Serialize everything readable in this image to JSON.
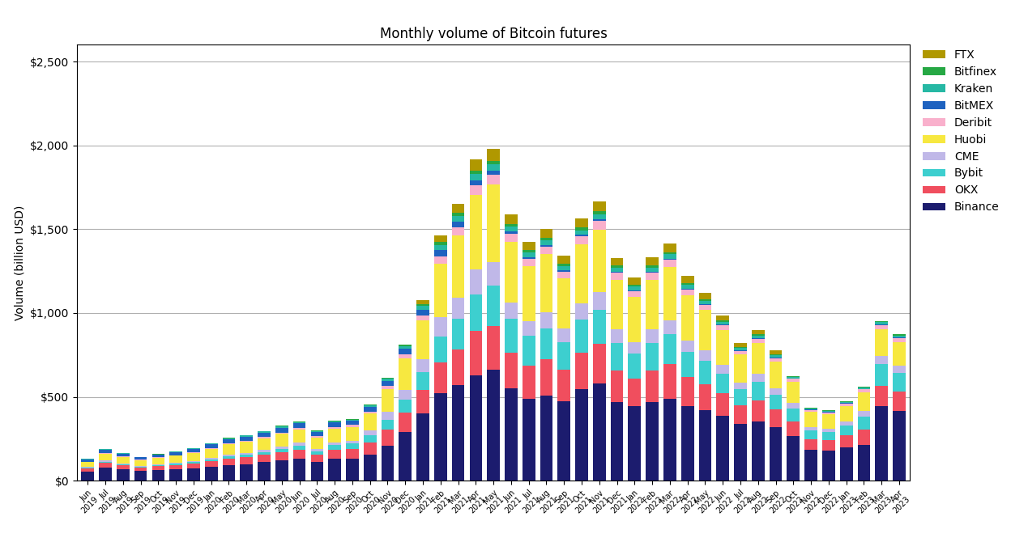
{
  "chart_data": {
    "type": "bar",
    "stacked": true,
    "title": "Monthly volume of Bitcoin futures",
    "ylabel": "Volume (billion USD)",
    "categories": [
      "Jun\n2019",
      "Jul\n2019",
      "Aug\n2019",
      "Sep\n2019",
      "Oct\n2019",
      "Nov\n2019",
      "Dec\n2019",
      "Jan\n2020",
      "Feb\n2020",
      "Mar\n2020",
      "Apr\n2020",
      "May\n2020",
      "Jun\n2020",
      "Jul\n2020",
      "Aug\n2020",
      "Sep\n2020",
      "Oct\n2020",
      "Nov\n2020",
      "Dec\n2020",
      "Jan\n2021",
      "Feb\n2021",
      "Mar\n2021",
      "Apr\n2021",
      "May\n2021",
      "Jun\n2021",
      "Jul\n2021",
      "Aug\n2021",
      "Sep\n2021",
      "Oct\n2021",
      "Nov\n2021",
      "Dec\n2021",
      "Jan\n2022",
      "Feb\n2022",
      "Mar\n2022",
      "Apr\n2022",
      "May\n2022",
      "Jun\n2022",
      "Jul\n2022",
      "Aug\n2022",
      "Sep\n2022",
      "Oct\n2022",
      "Nov\n2022",
      "Dec\n2022",
      "Jan\n2023",
      "Feb\n2023",
      "Mar\n2023",
      "Apr\n2023"
    ],
    "series": [
      {
        "name": "Binance",
        "color": "#1c1c6e",
        "values": [
          55,
          80,
          70,
          60,
          65,
          70,
          75,
          85,
          95,
          100,
          110,
          120,
          130,
          110,
          130,
          130,
          155,
          210,
          290,
          400,
          520,
          570,
          630,
          660,
          550,
          490,
          510,
          475,
          545,
          580,
          470,
          445,
          470,
          490,
          445,
          420,
          385,
          340,
          355,
          320,
          265,
          185,
          180,
          200,
          215,
          445,
          415
        ]
      },
      {
        "name": "OKX",
        "color": "#f04e5e",
        "values": [
          20,
          28,
          24,
          20,
          23,
          25,
          28,
          32,
          38,
          40,
          45,
          50,
          55,
          45,
          55,
          60,
          75,
          95,
          115,
          140,
          185,
          215,
          265,
          265,
          215,
          195,
          215,
          185,
          220,
          235,
          185,
          165,
          185,
          205,
          175,
          155,
          135,
          110,
          125,
          105,
          90,
          62,
          62,
          70,
          90,
          120,
          115
        ]
      },
      {
        "name": "Bybit",
        "color": "#3dcfcf",
        "values": [
          4,
          6,
          5,
          5,
          5,
          6,
          7,
          10,
          12,
          14,
          16,
          20,
          26,
          20,
          28,
          32,
          42,
          60,
          80,
          110,
          155,
          180,
          215,
          240,
          200,
          180,
          185,
          168,
          195,
          205,
          168,
          148,
          168,
          178,
          148,
          140,
          120,
          95,
          110,
          90,
          75,
          52,
          50,
          58,
          78,
          130,
          112
        ]
      },
      {
        "name": "CME",
        "color": "#c0b8e8",
        "values": [
          4,
          6,
          5,
          5,
          5,
          6,
          8,
          10,
          11,
          12,
          13,
          14,
          15,
          13,
          16,
          18,
          28,
          44,
          58,
          76,
          115,
          128,
          148,
          138,
          98,
          88,
          95,
          82,
          96,
          105,
          78,
          68,
          78,
          82,
          68,
          62,
          50,
          42,
          46,
          38,
          32,
          21,
          20,
          24,
          33,
          50,
          46
        ]
      },
      {
        "name": "Huobi",
        "color": "#f7e840",
        "values": [
          28,
          42,
          38,
          32,
          38,
          42,
          48,
          52,
          60,
          65,
          70,
          76,
          80,
          70,
          82,
          82,
          100,
          138,
          185,
          230,
          318,
          368,
          445,
          462,
          362,
          325,
          345,
          298,
          352,
          372,
          298,
          268,
          298,
          318,
          268,
          240,
          210,
          165,
          185,
          158,
          128,
          90,
          85,
          95,
          112,
          158,
          140
        ]
      },
      {
        "name": "Deribit",
        "color": "#f9b0cc",
        "values": [
          3,
          4,
          3,
          3,
          3,
          3,
          4,
          5,
          6,
          6,
          7,
          8,
          8,
          7,
          9,
          10,
          13,
          17,
          24,
          30,
          44,
          50,
          58,
          62,
          48,
          44,
          46,
          40,
          48,
          52,
          40,
          36,
          40,
          44,
          36,
          32,
          28,
          22,
          26,
          21,
          17,
          12,
          11,
          13,
          17,
          25,
          22
        ]
      },
      {
        "name": "BitMEX",
        "color": "#1e62c0",
        "values": [
          14,
          20,
          17,
          14,
          16,
          18,
          20,
          23,
          25,
          27,
          27,
          28,
          28,
          24,
          27,
          24,
          26,
          30,
          35,
          35,
          40,
          36,
          30,
          22,
          15,
          13,
          10,
          9,
          10,
          10,
          8,
          7,
          8,
          8,
          6,
          5,
          4,
          4,
          4,
          3,
          3,
          2,
          2,
          2,
          2,
          3,
          3
        ]
      },
      {
        "name": "Kraken",
        "color": "#26b8a4",
        "values": [
          2,
          3,
          3,
          2,
          3,
          3,
          4,
          4,
          5,
          6,
          6,
          7,
          7,
          6,
          8,
          8,
          10,
          13,
          17,
          21,
          30,
          32,
          38,
          38,
          28,
          26,
          28,
          24,
          28,
          30,
          23,
          21,
          23,
          25,
          21,
          18,
          15,
          12,
          14,
          12,
          10,
          7,
          6,
          7,
          9,
          14,
          12
        ]
      },
      {
        "name": "Bitfinex",
        "color": "#26a844",
        "values": [
          2,
          2,
          2,
          2,
          2,
          2,
          2,
          2,
          3,
          3,
          3,
          4,
          4,
          3,
          4,
          4,
          5,
          7,
          10,
          11,
          16,
          18,
          21,
          20,
          15,
          14,
          15,
          12,
          16,
          17,
          13,
          11,
          13,
          13,
          11,
          10,
          8,
          7,
          7,
          6,
          5,
          4,
          4,
          4,
          5,
          8,
          7
        ]
      },
      {
        "name": "FTX",
        "color": "#b09800",
        "values": [
          0,
          0,
          0,
          0,
          0,
          0,
          0,
          0,
          0,
          0,
          0,
          0,
          0,
          0,
          0,
          0,
          0,
          0,
          0,
          25,
          42,
          52,
          68,
          72,
          55,
          50,
          54,
          47,
          56,
          60,
          47,
          42,
          48,
          50,
          42,
          37,
          32,
          25,
          28,
          23,
          0,
          0,
          0,
          0,
          0,
          0,
          0
        ]
      }
    ],
    "ylim": [
      0,
      2600
    ],
    "yticks": [
      {
        "value": 0,
        "label": "$0"
      },
      {
        "value": 500,
        "label": "$500"
      },
      {
        "value": 1000,
        "label": "$1,000"
      },
      {
        "value": 1500,
        "label": "$1,500"
      },
      {
        "value": 2000,
        "label": "$2,000"
      },
      {
        "value": 2500,
        "label": "$2,500"
      }
    ],
    "grid": true,
    "legend": "upper left"
  }
}
